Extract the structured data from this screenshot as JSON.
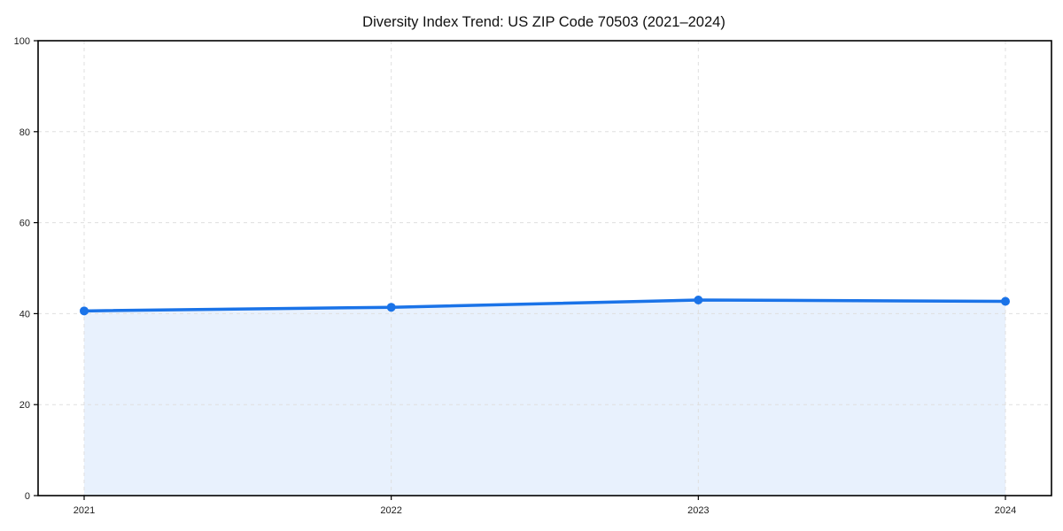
{
  "page": {
    "background": "#ffffff"
  },
  "chart_data": {
    "type": "area",
    "title": "Diversity Index Trend: US ZIP Code 70503 (2021–2024)",
    "x": [
      2021,
      2022,
      2023,
      2024
    ],
    "x_labels": [
      "2021",
      "2022",
      "2023",
      "2024"
    ],
    "series": [
      {
        "name": "Diversity Index",
        "values": [
          40.6,
          41.4,
          43.0,
          42.7
        ]
      }
    ],
    "xlabel": "",
    "ylabel": "",
    "ylim": [
      0,
      100
    ],
    "yticks": [
      0,
      20,
      40,
      60,
      80,
      100
    ],
    "grid": true,
    "grid_style": "dashed",
    "legend": "none",
    "colors": {
      "line": "#1a73e8",
      "marker": "#1a73e8",
      "fill": "#1a73e8",
      "fill_opacity": 0.1,
      "grid": "#dfdfdf",
      "axis": "#000000",
      "text": "#1c1c1c"
    }
  }
}
